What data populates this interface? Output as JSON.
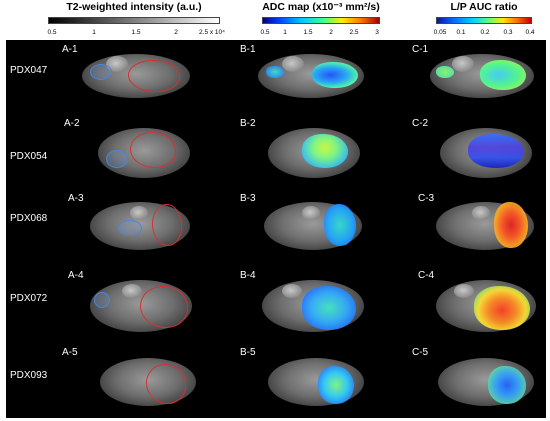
{
  "colorbars": [
    {
      "title": "T2-weighted intensity (a.u.)",
      "ticks": [
        "0.5",
        "1",
        "1.5",
        "2",
        "2.5 x 10⁴"
      ]
    },
    {
      "title": "ADC map (x10⁻³ mm²/s)",
      "ticks": [
        "0.5",
        "1",
        "1.5",
        "2",
        "2.5",
        "3"
      ]
    },
    {
      "title": "L/P AUC ratio",
      "ticks": [
        "0.05",
        "0.1",
        "0.2",
        "0.3",
        "0.4"
      ]
    }
  ],
  "rows": [
    {
      "name": "PDX047",
      "labels": [
        "A-1",
        "B-1",
        "C-1"
      ]
    },
    {
      "name": "PDX054",
      "labels": [
        "A-2",
        "B-2",
        "C-2"
      ]
    },
    {
      "name": "PDX068",
      "labels": [
        "A-3",
        "B-3",
        "C-3"
      ]
    },
    {
      "name": "PDX072",
      "labels": [
        "A-4",
        "B-4",
        "C-4"
      ]
    },
    {
      "name": "PDX093",
      "labels": [
        "A-5",
        "B-5",
        "C-5"
      ]
    }
  ],
  "colors": {
    "panel_background": "#000000",
    "kidney_roi": "#4a86d8",
    "tumor_roi": "#d83030"
  }
}
